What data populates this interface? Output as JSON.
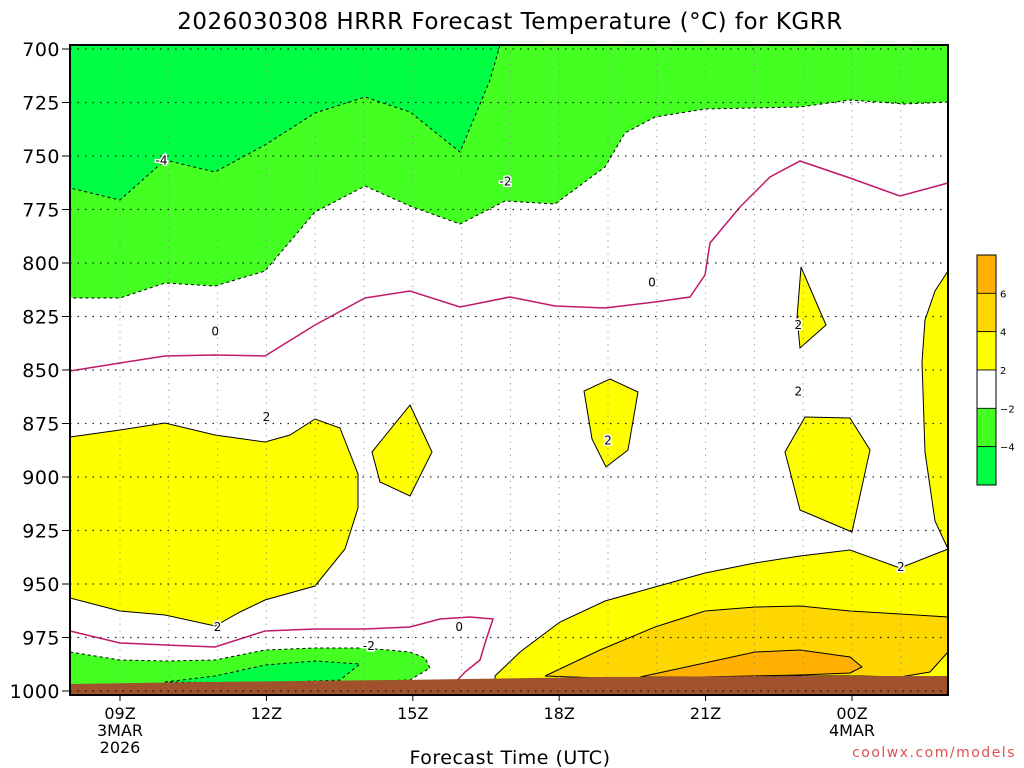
{
  "chart_data": {
    "type": "contour",
    "title": "2026030308 HRRR Forecast Temperature (°C) for KGRR",
    "xlabel": "Forecast Time (UTC)",
    "ylabel": "",
    "x_hours_range": [
      8,
      26
    ],
    "x_ticks": [
      {
        "hour": 9,
        "label": "09Z",
        "sub1": "3MAR",
        "sub2": "2026"
      },
      {
        "hour": 12,
        "label": "12Z",
        "sub1": "",
        "sub2": ""
      },
      {
        "hour": 15,
        "label": "15Z",
        "sub1": "",
        "sub2": ""
      },
      {
        "hour": 18,
        "label": "18Z",
        "sub1": "",
        "sub2": ""
      },
      {
        "hour": 21,
        "label": "21Z",
        "sub1": "",
        "sub2": ""
      },
      {
        "hour": 24,
        "label": "00Z",
        "sub1": "4MAR",
        "sub2": ""
      }
    ],
    "y_ticks": [
      "700",
      "725",
      "750",
      "775",
      "800",
      "825",
      "850",
      "875",
      "900",
      "925",
      "950",
      "975",
      "1000"
    ],
    "y_range_hpa": [
      700,
      1000
    ],
    "colorbar": {
      "labels": [
        "6",
        "4",
        "2",
        "−2",
        "−4"
      ],
      "bands": [
        {
          "from": 6,
          "to": 8,
          "color": "#ffb000"
        },
        {
          "from": 4,
          "to": 6,
          "color": "#ffd700"
        },
        {
          "from": 2,
          "to": 4,
          "color": "#ffff00"
        },
        {
          "from": -2,
          "to": 2,
          "color": "#ffffff"
        },
        {
          "from": -4,
          "to": -2,
          "color": "#44ff22"
        },
        {
          "from": -6,
          "to": -4,
          "color": "#00ff44"
        }
      ]
    },
    "contour_labels": [
      {
        "text": "-4",
        "x": 9.85,
        "p": 752
      },
      {
        "text": "-2",
        "x": 16.9,
        "p": 762
      },
      {
        "text": "-2",
        "x": 14.1,
        "p": 979
      },
      {
        "text": "0",
        "x": 10.95,
        "p": 832
      },
      {
        "text": "0",
        "x": 19.9,
        "p": 809
      },
      {
        "text": "0",
        "x": 15.95,
        "p": 970
      },
      {
        "text": "2",
        "x": 12.0,
        "p": 872
      },
      {
        "text": "2",
        "x": 11.0,
        "p": 970
      },
      {
        "text": "2",
        "x": 19.0,
        "p": 883
      },
      {
        "text": "2",
        "x": 22.9,
        "p": 829
      },
      {
        "text": "2",
        "x": 22.9,
        "p": 860
      },
      {
        "text": "2",
        "x": 25.0,
        "p": 942
      }
    ],
    "grid": true
  },
  "footer": {
    "credit": "coolwx.com/models"
  }
}
